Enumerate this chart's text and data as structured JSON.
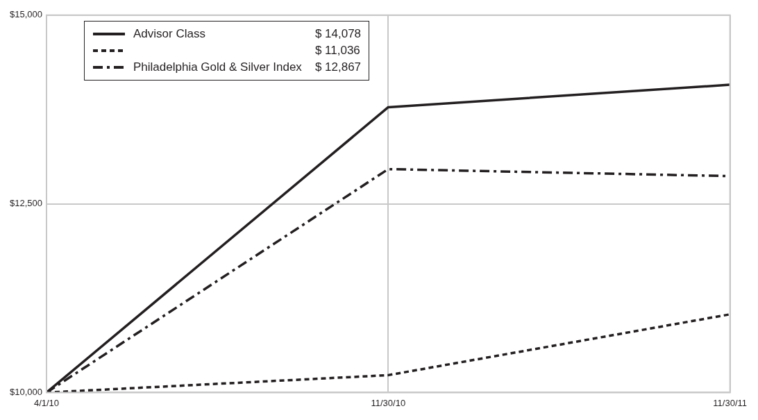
{
  "chart_data": {
    "type": "line",
    "categories": [
      "4/1/10",
      "11/30/10",
      "11/30/11"
    ],
    "series": [
      {
        "name": "Advisor Class",
        "color": "#231f20",
        "line_style": "solid",
        "values": [
          10000,
          13780,
          14078
        ]
      },
      {
        "color": "#231f20",
        "line_style": "dashed",
        "values": [
          10000,
          10230,
          11036
        ]
      },
      {
        "name": "Philadelphia Gold & Silver Index",
        "color": "#231f20",
        "line_style": "dashdot",
        "values": [
          10000,
          12960,
          12867
        ]
      }
    ],
    "annotations": [
      "$ 14,078",
      "$ 11,036",
      "$ 12,867"
    ],
    "ylim": [
      10000,
      15000
    ],
    "yticks": [
      {
        "value": 10000,
        "label": "$10,000"
      },
      {
        "value": 12500,
        "label": "$12,500"
      },
      {
        "value": 15000,
        "label": "$15,000"
      }
    ],
    "grid": true,
    "legend": "top left",
    "marker": "none"
  }
}
